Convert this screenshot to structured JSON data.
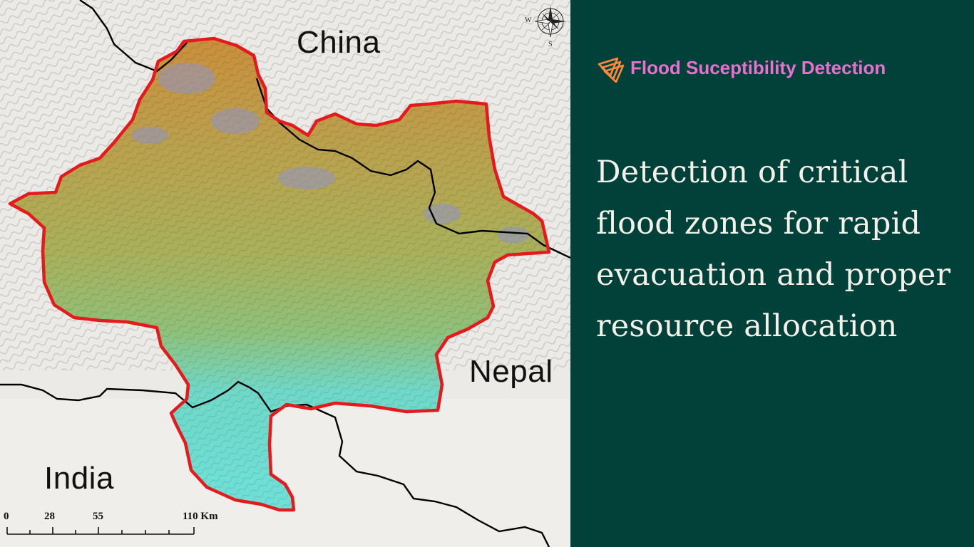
{
  "map": {
    "labels": {
      "china": "China",
      "nepal": "Nepal",
      "india": "India"
    },
    "compass": {
      "west": "W",
      "south": "S"
    },
    "scale_bar": {
      "ticks": [
        "0",
        "28",
        "55",
        "110 Km"
      ]
    },
    "colors": {
      "boundary": "#e41a1c",
      "border": "#000000",
      "terrain_high": "#c98f3c",
      "terrain_mid": "#b9b45a",
      "terrain_low": "#6fd8c8",
      "snow": "#8f93c9"
    }
  },
  "brand": {
    "title": "Flood Suceptibility Detection",
    "icon": "stacked-triangles-logo-icon",
    "color": "#ec6fcf",
    "logo_color": "#ff8a3d"
  },
  "headline": {
    "text": "Detection of critical flood zones for rapid evacuation and proper resource allocation"
  },
  "theme": {
    "background": "#02413a",
    "text": "#f3f1ea"
  }
}
